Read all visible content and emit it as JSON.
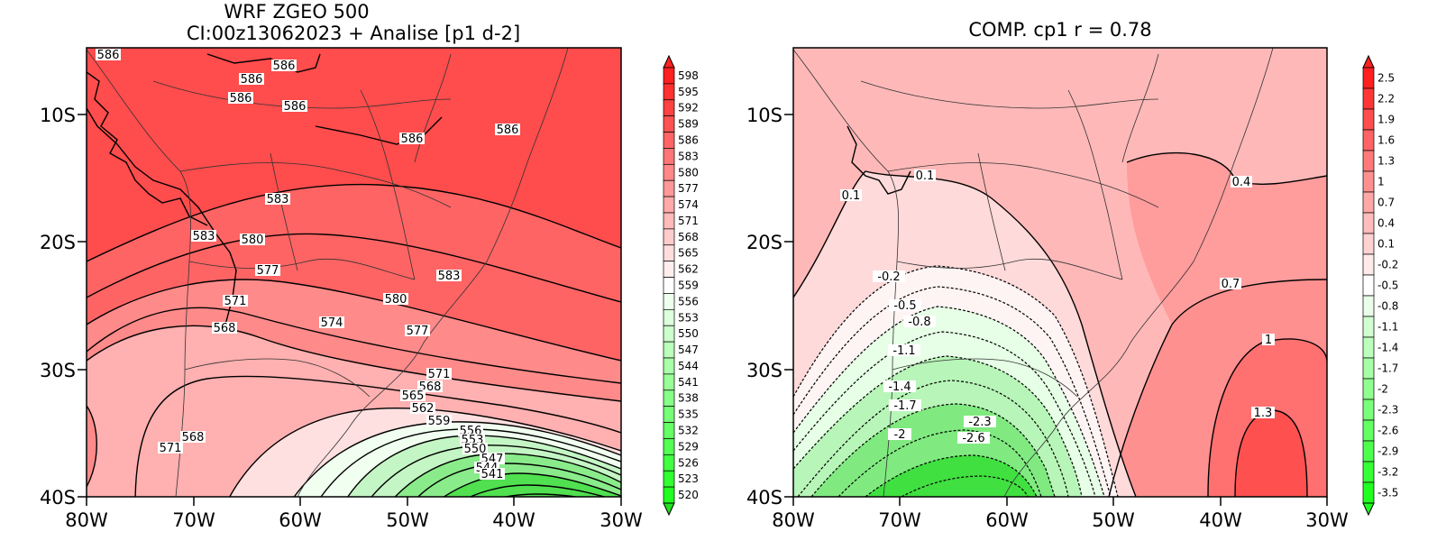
{
  "left_panel": {
    "title_line1": "WRF ZGEO 500",
    "title_line2": "CI:00z13062023 + Analise  [p1 d-2]",
    "x_ticks": [
      "80W",
      "70W",
      "60W",
      "50W",
      "40W",
      "30W"
    ],
    "y_ticks": [
      "10S",
      "20S",
      "30S",
      "40S"
    ],
    "colorbar_labels": [
      "598",
      "595",
      "592",
      "589",
      "586",
      "583",
      "580",
      "577",
      "574",
      "571",
      "568",
      "565",
      "562",
      "559",
      "556",
      "553",
      "550",
      "547",
      "544",
      "541",
      "538",
      "535",
      "532",
      "529",
      "526",
      "523",
      "520"
    ],
    "contour_labels": [
      "586",
      "586",
      "586",
      "586",
      "586",
      "586",
      "586",
      "583",
      "583",
      "580",
      "577",
      "571",
      "568",
      "574",
      "580",
      "583",
      "577",
      "571",
      "568",
      "565",
      "562",
      "559",
      "556",
      "553",
      "550",
      "547",
      "544",
      "541",
      "571",
      "568"
    ]
  },
  "right_panel": {
    "title": "COMP. cp1   r =   0.78",
    "x_ticks": [
      "80W",
      "70W",
      "60W",
      "50W",
      "40W",
      "30W"
    ],
    "y_ticks": [
      "10S",
      "20S",
      "30S",
      "40S"
    ],
    "colorbar_labels": [
      "2.5",
      "2.2",
      "1.9",
      "1.6",
      "1.3",
      "1",
      "0.7",
      "0.4",
      "0.1",
      "-0.2",
      "-0.5",
      "-0.8",
      "-1.1",
      "-1.4",
      "-1.7",
      "-2",
      "-2.3",
      "-2.6",
      "-2.9",
      "-3.2",
      "-3.5"
    ],
    "contour_labels": [
      "0.1",
      "0.1",
      "0.4",
      "-0.2",
      "-0.5",
      "-0.8",
      "0.7",
      "-1.1",
      "1",
      "-1.4",
      "-1.7",
      "1.3",
      "-2.3",
      "-2.6",
      "-2"
    ]
  },
  "colors": {
    "max_red": "#ff2020",
    "mid_white": "#ffffff",
    "max_green": "#20ff20",
    "contour": "#000000"
  },
  "chart_data": [
    {
      "type": "heatmap",
      "title": "WRF ZGEO 500",
      "subtitle": "CI:00z13062023 + Analise  [p1 d-2]",
      "xlim": [
        "80W",
        "30W"
      ],
      "ylim": [
        "40S",
        "5S"
      ],
      "x_ticks": [
        "80W",
        "70W",
        "60W",
        "50W",
        "40W",
        "30W"
      ],
      "y_ticks": [
        "10S",
        "20S",
        "30S",
        "40S"
      ],
      "levels": [
        598,
        595,
        592,
        589,
        586,
        583,
        580,
        577,
        574,
        571,
        568,
        565,
        562,
        559,
        556,
        553,
        550,
        547,
        544,
        541,
        538,
        535,
        532,
        529,
        526,
        523,
        520
      ],
      "contour_labels": [
        586,
        586,
        586,
        586,
        586,
        586,
        586,
        583,
        583,
        580,
        577,
        571,
        568,
        574,
        580,
        583,
        577,
        571,
        568,
        565,
        562,
        559,
        556,
        553,
        550,
        547,
        544,
        541,
        571,
        568
      ],
      "colormap": "green-white-red"
    },
    {
      "type": "heatmap",
      "title": "COMP. cp1   r =   0.78",
      "xlim": [
        "80W",
        "30W"
      ],
      "ylim": [
        "40S",
        "5S"
      ],
      "x_ticks": [
        "80W",
        "70W",
        "60W",
        "50W",
        "40W",
        "30W"
      ],
      "y_ticks": [
        "10S",
        "20S",
        "30S",
        "40S"
      ],
      "levels": [
        2.5,
        2.2,
        1.9,
        1.6,
        1.3,
        1,
        0.7,
        0.4,
        0.1,
        -0.2,
        -0.5,
        -0.8,
        -1.1,
        -1.4,
        -1.7,
        -2,
        -2.3,
        -2.6,
        -2.9,
        -3.2,
        -3.5
      ],
      "contour_labels": [
        0.1,
        0.1,
        0.4,
        -0.2,
        -0.5,
        -0.8,
        0.7,
        -1.1,
        1,
        -1.4,
        -1.7,
        1.3,
        -2.3,
        -2.6,
        -2
      ],
      "colormap": "green-white-red"
    }
  ]
}
